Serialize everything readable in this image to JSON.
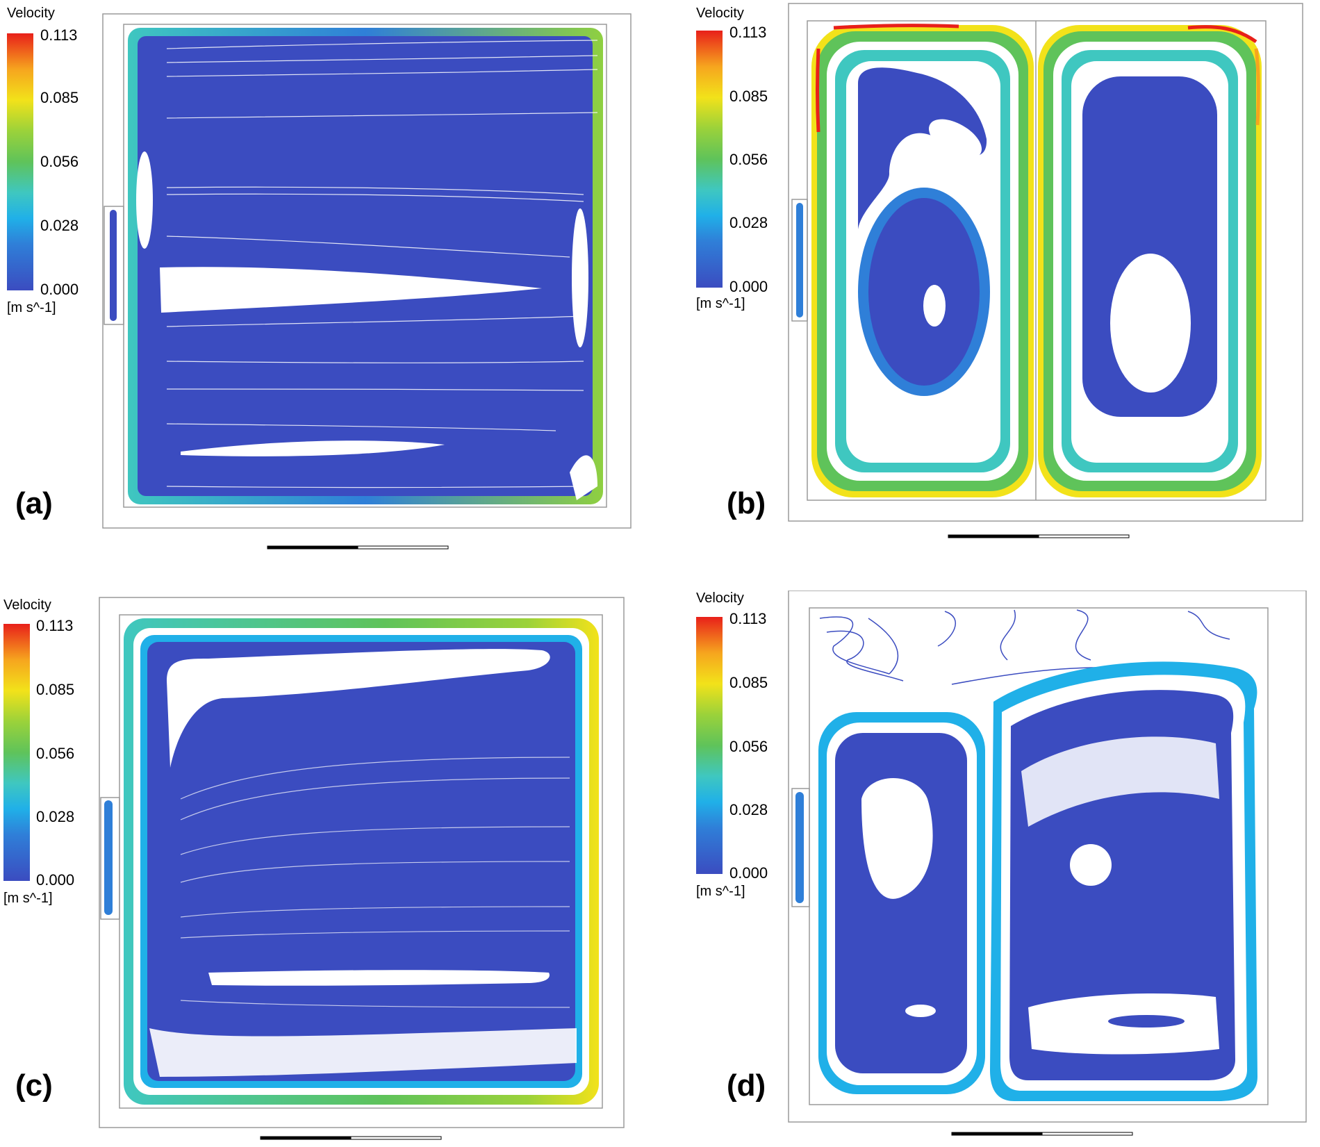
{
  "figure": {
    "colors": {
      "low": "#3b4cc0",
      "mid_low": "#20b0e8",
      "mid": "#5fc35a",
      "high": "#f2e21a",
      "max": "#e8201a",
      "frame": "#9a9a9a"
    },
    "panels": [
      {
        "label": "(a)",
        "legend_title": "Velocity",
        "legend_unit": "[m s^-1]",
        "ticks": [
          "0.113",
          "0.085",
          "0.056",
          "0.028",
          "0.000"
        ]
      },
      {
        "label": "(b)",
        "legend_title": "Velocity",
        "legend_unit": "[m s^-1]",
        "ticks": [
          "0.113",
          "0.085",
          "0.056",
          "0.028",
          "0.000"
        ]
      },
      {
        "label": "(c)",
        "legend_title": "Velocity",
        "legend_unit": "[m s^-1]",
        "ticks": [
          "0.113",
          "0.085",
          "0.056",
          "0.028",
          "0.000"
        ]
      },
      {
        "label": "(d)",
        "legend_title": "Velocity",
        "legend_unit": "[m s^-1]",
        "ticks": [
          "0.113",
          "0.085",
          "0.056",
          "0.028",
          "0.000"
        ]
      }
    ]
  }
}
